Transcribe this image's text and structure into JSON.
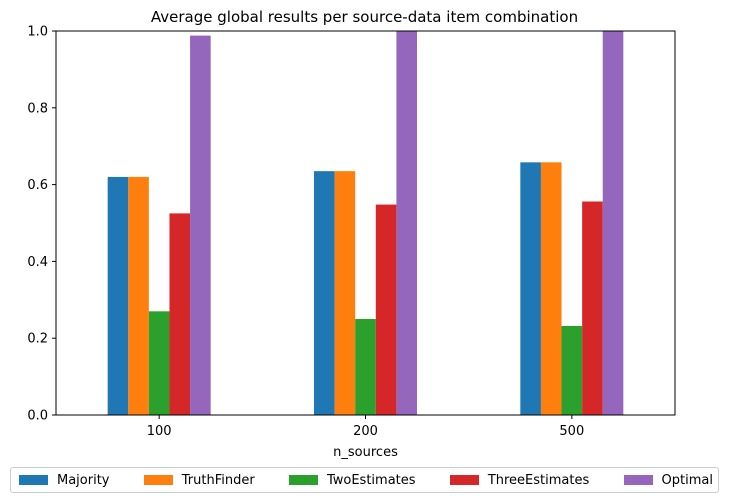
{
  "chart_data": {
    "type": "bar",
    "title": "Average global results per source-data item combination",
    "xlabel": "n_sources",
    "ylabel": "",
    "categories": [
      "100",
      "200",
      "500"
    ],
    "ylim": [
      0,
      1.0
    ],
    "yticks": [
      "0.0",
      "0.2",
      "0.4",
      "0.6",
      "0.8",
      "1.0"
    ],
    "grid": false,
    "legend_position": "bottom",
    "series": [
      {
        "name": "Majority",
        "color": "#1f77b4",
        "values": [
          0.62,
          0.635,
          0.658
        ]
      },
      {
        "name": "TruthFinder",
        "color": "#ff7f0e",
        "values": [
          0.62,
          0.635,
          0.658
        ]
      },
      {
        "name": "TwoEstimates",
        "color": "#2ca02c",
        "values": [
          0.27,
          0.25,
          0.232
        ]
      },
      {
        "name": "ThreeEstimates",
        "color": "#d62728",
        "values": [
          0.525,
          0.548,
          0.556
        ]
      },
      {
        "name": "Optimal",
        "color": "#9467bd",
        "values": [
          0.988,
          1.0,
          1.0
        ]
      }
    ]
  }
}
